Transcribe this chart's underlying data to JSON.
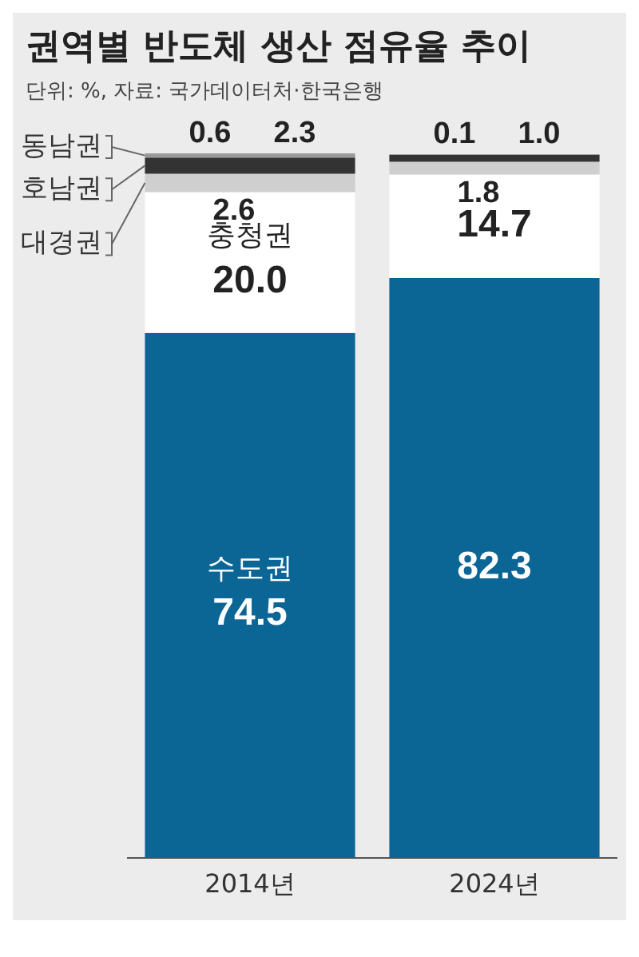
{
  "chart_data": {
    "type": "bar",
    "title": "권역별 반도체 생산 점유율 추이",
    "subtitle": "단위: %, 자료: 국가데이터처·한국은행",
    "categories": [
      "2014년",
      "2024년"
    ],
    "stacked": true,
    "legend": false,
    "grid": false,
    "series": [
      {
        "name": "수도권",
        "color": "#0b6595",
        "values": [
          74.5,
          82.3
        ],
        "value_labels": [
          "74.5",
          "82.3"
        ]
      },
      {
        "name": "충청권",
        "color": "#ffffff",
        "values": [
          20.0,
          14.7
        ],
        "value_labels": [
          "20.0",
          "14.7"
        ]
      },
      {
        "name": "대경권",
        "color": "#cfcfcf",
        "values": [
          2.6,
          1.8
        ],
        "value_labels": [
          "2.6",
          "1.8"
        ]
      },
      {
        "name": "호남권",
        "color": "#333333",
        "values": [
          2.3,
          1.0
        ],
        "value_labels": [
          "2.3",
          "1.0"
        ]
      },
      {
        "name": "동남권",
        "color": "#9a9a9a",
        "values": [
          0.6,
          0.1
        ],
        "value_labels": [
          "0.6",
          "0.1"
        ]
      }
    ]
  }
}
